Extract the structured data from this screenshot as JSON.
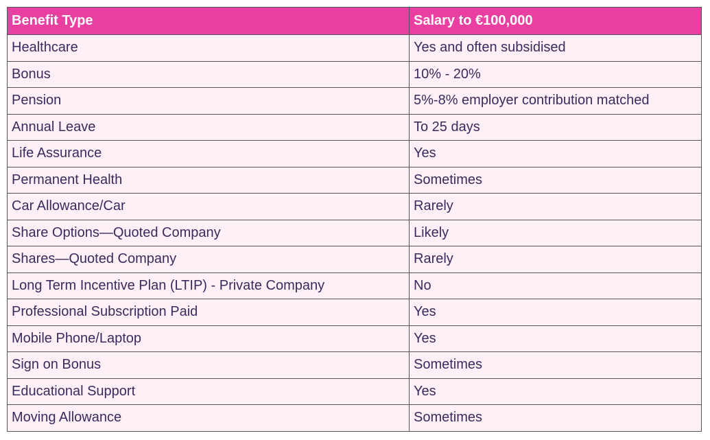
{
  "table": {
    "header": [
      "Benefit Type",
      "Salary to €100,000"
    ],
    "rows": [
      [
        "Healthcare",
        "Yes and often subsidised"
      ],
      [
        "Bonus",
        "10% - 20%"
      ],
      [
        "Pension",
        "5%-8% employer contribution matched"
      ],
      [
        "Annual Leave",
        "To 25 days"
      ],
      [
        "Life Assurance",
        "Yes"
      ],
      [
        "Permanent Health",
        "Sometimes"
      ],
      [
        "Car Allowance/Car",
        "Rarely"
      ],
      [
        "Share Options—Quoted Company",
        "Likely"
      ],
      [
        "Shares—Quoted Company",
        "Rarely"
      ],
      [
        "Long Term Incentive Plan (LTIP) - Private Company",
        "No"
      ],
      [
        "Professional Subscription Paid",
        "Yes"
      ],
      [
        "Mobile Phone/Laptop",
        "Yes"
      ],
      [
        "Sign on Bonus",
        "Sometimes"
      ],
      [
        "Educational Support",
        "Yes"
      ],
      [
        "Moving Allowance",
        "Sometimes"
      ]
    ]
  }
}
